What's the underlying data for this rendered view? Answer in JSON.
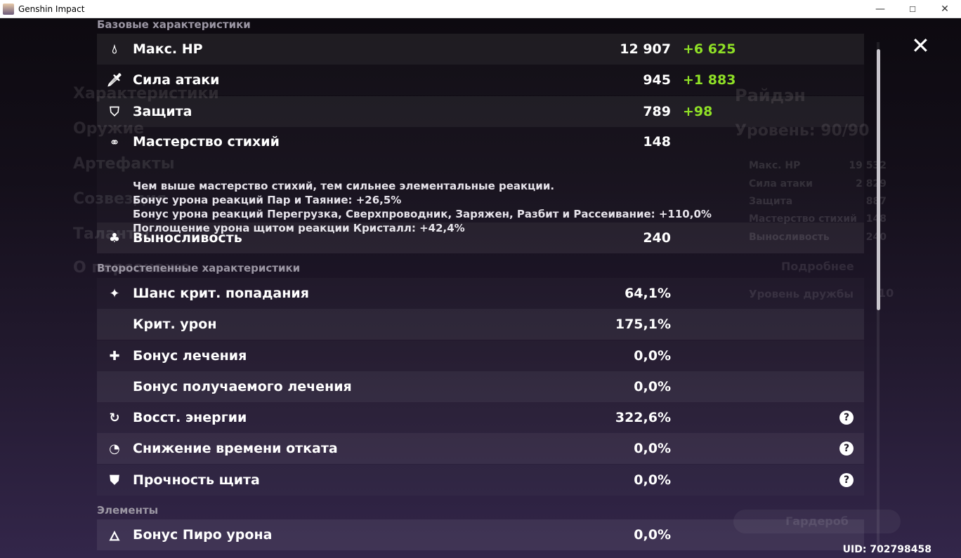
{
  "window": {
    "title": "Genshin Impact",
    "minimize": "—",
    "maximize": "☐",
    "close": "✕"
  },
  "background": {
    "character_name": "Райдэн",
    "level": "Уровень: 90/90",
    "stats": [
      [
        "Макс. HP",
        "19 532"
      ],
      [
        "Сила атаки",
        "2 829"
      ],
      [
        "Защита",
        "887"
      ],
      [
        "Мастерство стихий",
        "148"
      ],
      [
        "Выносливость",
        "240"
      ]
    ],
    "more": "Подробнее",
    "friendship": "Уровень дружбы",
    "friendship_value": "10",
    "wardrobe": "Гардероб",
    "menu": [
      "Характеристики",
      "Оружие",
      "Артефакты",
      "Созвездия",
      "Таланты",
      "О персонаже"
    ]
  },
  "sections": {
    "base": "Базовые характеристики",
    "secondary": "Второстепенные характеристики",
    "elements": "Элементы"
  },
  "base_stats": [
    {
      "label": "Макс. HP",
      "value": "12 907",
      "bonus": "+6 625",
      "icon": "drop-icon"
    },
    {
      "label": "Сила атаки",
      "value": "945",
      "bonus": "+1 883",
      "icon": "sword-icon"
    },
    {
      "label": "Защита",
      "value": "789",
      "bonus": "+98",
      "icon": "shield-icon"
    },
    {
      "label": "Мастерство стихий",
      "value": "148",
      "icon": "rings-icon"
    },
    {
      "label": "Выносливость",
      "value": "240",
      "icon": "stamina-icon"
    }
  ],
  "em_description": [
    "Чем выше мастерство стихий, тем сильнее элементальные реакции.",
    "Бонус урона реакций Пар и Таяние: +26,5%",
    "Бонус урона реакций Перегрузка, Сверхпроводник, Заряжен, Разбит и Рассеивание: +110,0%",
    "Поглощение урона щитом реакции Кристалл: +42,4%"
  ],
  "secondary_stats": [
    {
      "label": "Шанс крит. попадания",
      "value": "64,1%",
      "icon": "crit-icon"
    },
    {
      "label": "Крит. урон",
      "value": "175,1%"
    },
    {
      "label": "Бонус лечения",
      "value": "0,0%",
      "icon": "cross-icon"
    },
    {
      "label": "Бонус получаемого лечения",
      "value": "0,0%"
    },
    {
      "label": "Восст. энергии",
      "value": "322,6%",
      "icon": "energy-icon",
      "help": "?"
    },
    {
      "label": "Снижение времени отката",
      "value": "0,0%",
      "icon": "cooldown-icon",
      "help": "?"
    },
    {
      "label": "Прочность щита",
      "value": "0,0%",
      "icon": "shield-strength-icon",
      "help": "?"
    }
  ],
  "element_stats": [
    {
      "label": "Бонус Пиро урона",
      "value": "0,0%",
      "icon": "pyro-icon"
    }
  ],
  "uid": "UID: 702798458",
  "colors": {
    "bonus": "#8fe026",
    "text": "#ffffff"
  }
}
